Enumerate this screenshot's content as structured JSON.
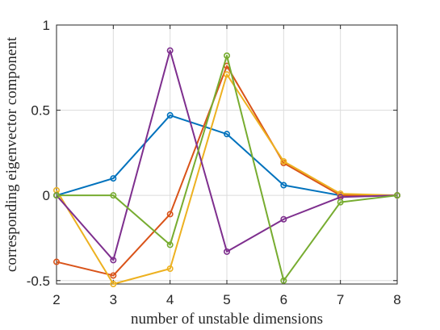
{
  "chart_data": {
    "type": "line",
    "title": "",
    "xlabel": "number of unstable dimensions",
    "ylabel": "corresponding eigenvector component",
    "xlim": [
      2,
      8
    ],
    "ylim": [
      -0.52,
      1
    ],
    "xticks": [
      2,
      3,
      4,
      5,
      6,
      7,
      8
    ],
    "xtick_labels": [
      "2",
      "3",
      "4",
      "5",
      "6",
      "7",
      "8"
    ],
    "yticks": [
      -0.5,
      0,
      0.5,
      1
    ],
    "ytick_labels": [
      "-0.5",
      "0",
      "0.5",
      "1"
    ],
    "grid": true,
    "x": [
      2,
      3,
      4,
      5,
      6,
      7,
      8
    ],
    "series": [
      {
        "color": "#0072BD",
        "values": [
          0.0,
          0.1,
          0.47,
          0.36,
          0.06,
          0.0,
          0.0
        ]
      },
      {
        "color": "#D95319",
        "values": [
          -0.39,
          -0.47,
          -0.11,
          0.76,
          0.19,
          0.0,
          0.0
        ]
      },
      {
        "color": "#EDB120",
        "values": [
          0.03,
          -0.52,
          -0.43,
          0.71,
          0.2,
          0.01,
          0.0
        ]
      },
      {
        "color": "#7E2F8E",
        "values": [
          0.0,
          -0.38,
          0.85,
          -0.33,
          -0.14,
          -0.01,
          0.0
        ]
      },
      {
        "color": "#77AC30",
        "values": [
          0.0,
          0.0,
          -0.29,
          0.82,
          -0.5,
          -0.04,
          0.0
        ]
      }
    ]
  }
}
